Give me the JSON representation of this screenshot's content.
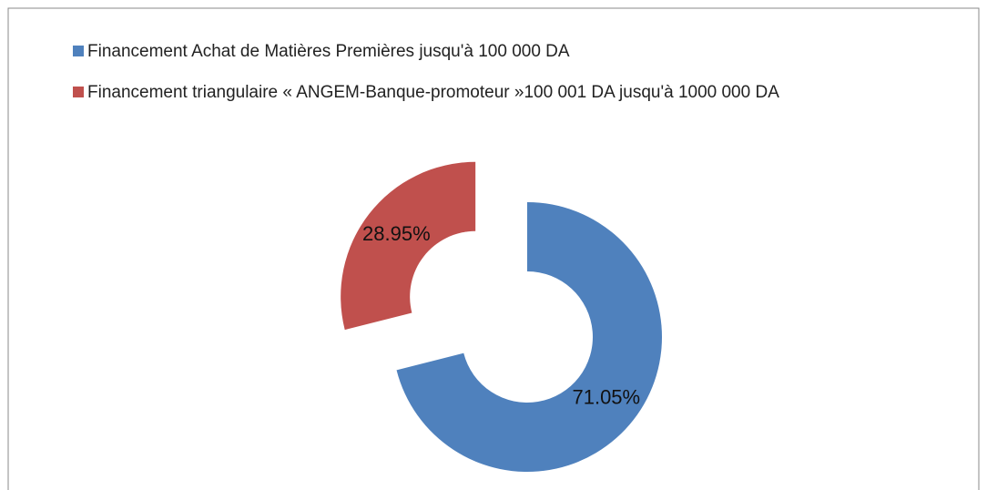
{
  "chart_data": {
    "type": "donut",
    "categories": [
      "Financement Achat de Matières Premières jusqu'à 100 000 DA",
      "Financement triangulaire « ANGEM-Banque-promoteur »100 001 DA jusqu'à 1000 000 DA"
    ],
    "values": [
      71.05,
      28.95
    ],
    "value_labels": [
      "71.05%",
      "28.95%"
    ],
    "colors": [
      "#4f81bd",
      "#c0504d"
    ]
  }
}
